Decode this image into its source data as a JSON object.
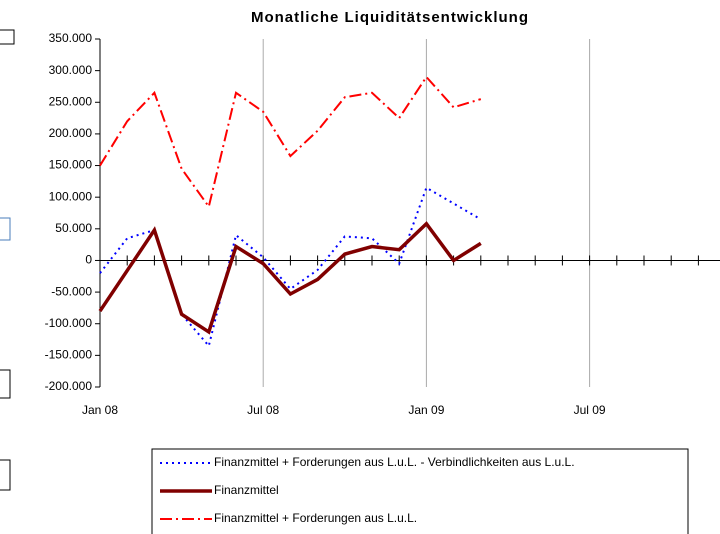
{
  "chart_data": {
    "type": "line",
    "title": "Monatliche Liquiditätsentwicklung",
    "x": [
      0,
      1,
      2,
      3,
      4,
      5,
      6,
      7,
      8,
      9,
      10,
      11,
      12,
      13,
      14
    ],
    "xlim": [
      0,
      24
    ],
    "xticks": [
      {
        "value": 0,
        "label": "Jan 08"
      },
      {
        "value": 6,
        "label": "Jul 08"
      },
      {
        "value": 12,
        "label": "Jan 09"
      },
      {
        "value": 18,
        "label": "Jul 09"
      }
    ],
    "ylim": [
      -200000,
      350000
    ],
    "yticks": [
      {
        "value": 350000,
        "label": "350.000"
      },
      {
        "value": 300000,
        "label": "300.000"
      },
      {
        "value": 250000,
        "label": "250.000"
      },
      {
        "value": 200000,
        "label": "200.000"
      },
      {
        "value": 150000,
        "label": "150.000"
      },
      {
        "value": 100000,
        "label": "100.000"
      },
      {
        "value": 50000,
        "label": "50.000"
      },
      {
        "value": 0,
        "label": "0"
      },
      {
        "value": -50000,
        "label": "-50.000"
      },
      {
        "value": -100000,
        "label": "-100.000"
      },
      {
        "value": -150000,
        "label": "-150.000"
      },
      {
        "value": -200000,
        "label": "-200.000"
      }
    ],
    "grid": true,
    "series": [
      {
        "name": "Finanzmittel + Forderungen aus L.u.L. - Verbindlichkeiten aus L.u.L.",
        "color": "#0000ff",
        "style": "dotted",
        "values": [
          -20000,
          35000,
          48000,
          -85000,
          -135000,
          40000,
          5000,
          -45000,
          -15000,
          38000,
          35000,
          -5000,
          115000,
          90000,
          65000
        ]
      },
      {
        "name": "Finanzmittel",
        "color": "#800000",
        "style": "solid",
        "values": [
          -80000,
          -16000,
          48000,
          -85000,
          -113000,
          22000,
          -5000,
          -53000,
          -30000,
          10000,
          22000,
          17000,
          58000,
          0,
          27000
        ]
      },
      {
        "name": "Finanzmittel + Forderungen aus L.u.L.",
        "color": "#ff0000",
        "style": "dashdot",
        "values": [
          150000,
          220000,
          265000,
          145000,
          85000,
          265000,
          235000,
          165000,
          205000,
          258000,
          265000,
          225000,
          290000,
          242000,
          255000
        ]
      }
    ]
  }
}
